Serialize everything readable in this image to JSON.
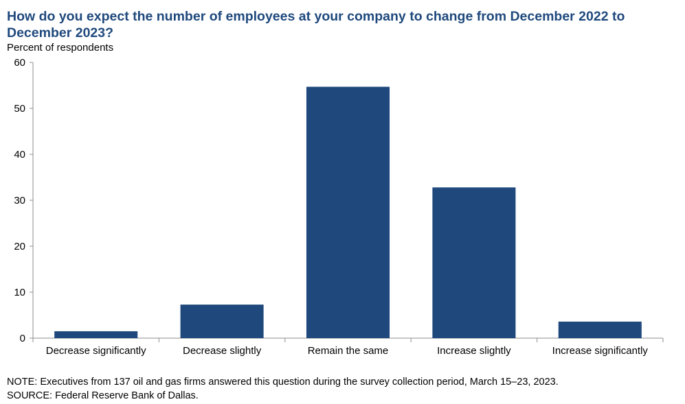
{
  "chart_data": {
    "type": "bar",
    "title": "How do you expect the number of employees at your company to change from December 2022 to December 2023?",
    "ylabel": "Percent  of respondents",
    "xlabel": "",
    "categories": [
      "Decrease significantly",
      "Decrease slightly",
      "Remain the same",
      "Increase slightly",
      "Increase significantly"
    ],
    "values": [
      1.5,
      7.3,
      54.7,
      32.8,
      3.6
    ],
    "ylim": [
      0,
      60
    ],
    "yticks": [
      0,
      10,
      20,
      30,
      40,
      50,
      60
    ],
    "grid": false,
    "legend": "none",
    "bar_color": "#1f497d"
  },
  "notes": {
    "note": "NOTE:  Executives  from  137  oil and  gas firms  answered  this  question  during  the  survey  collection  period,  March  15–23,  2023.",
    "source": "SOURCE:  Federal  Reserve  Bank  of Dallas."
  }
}
